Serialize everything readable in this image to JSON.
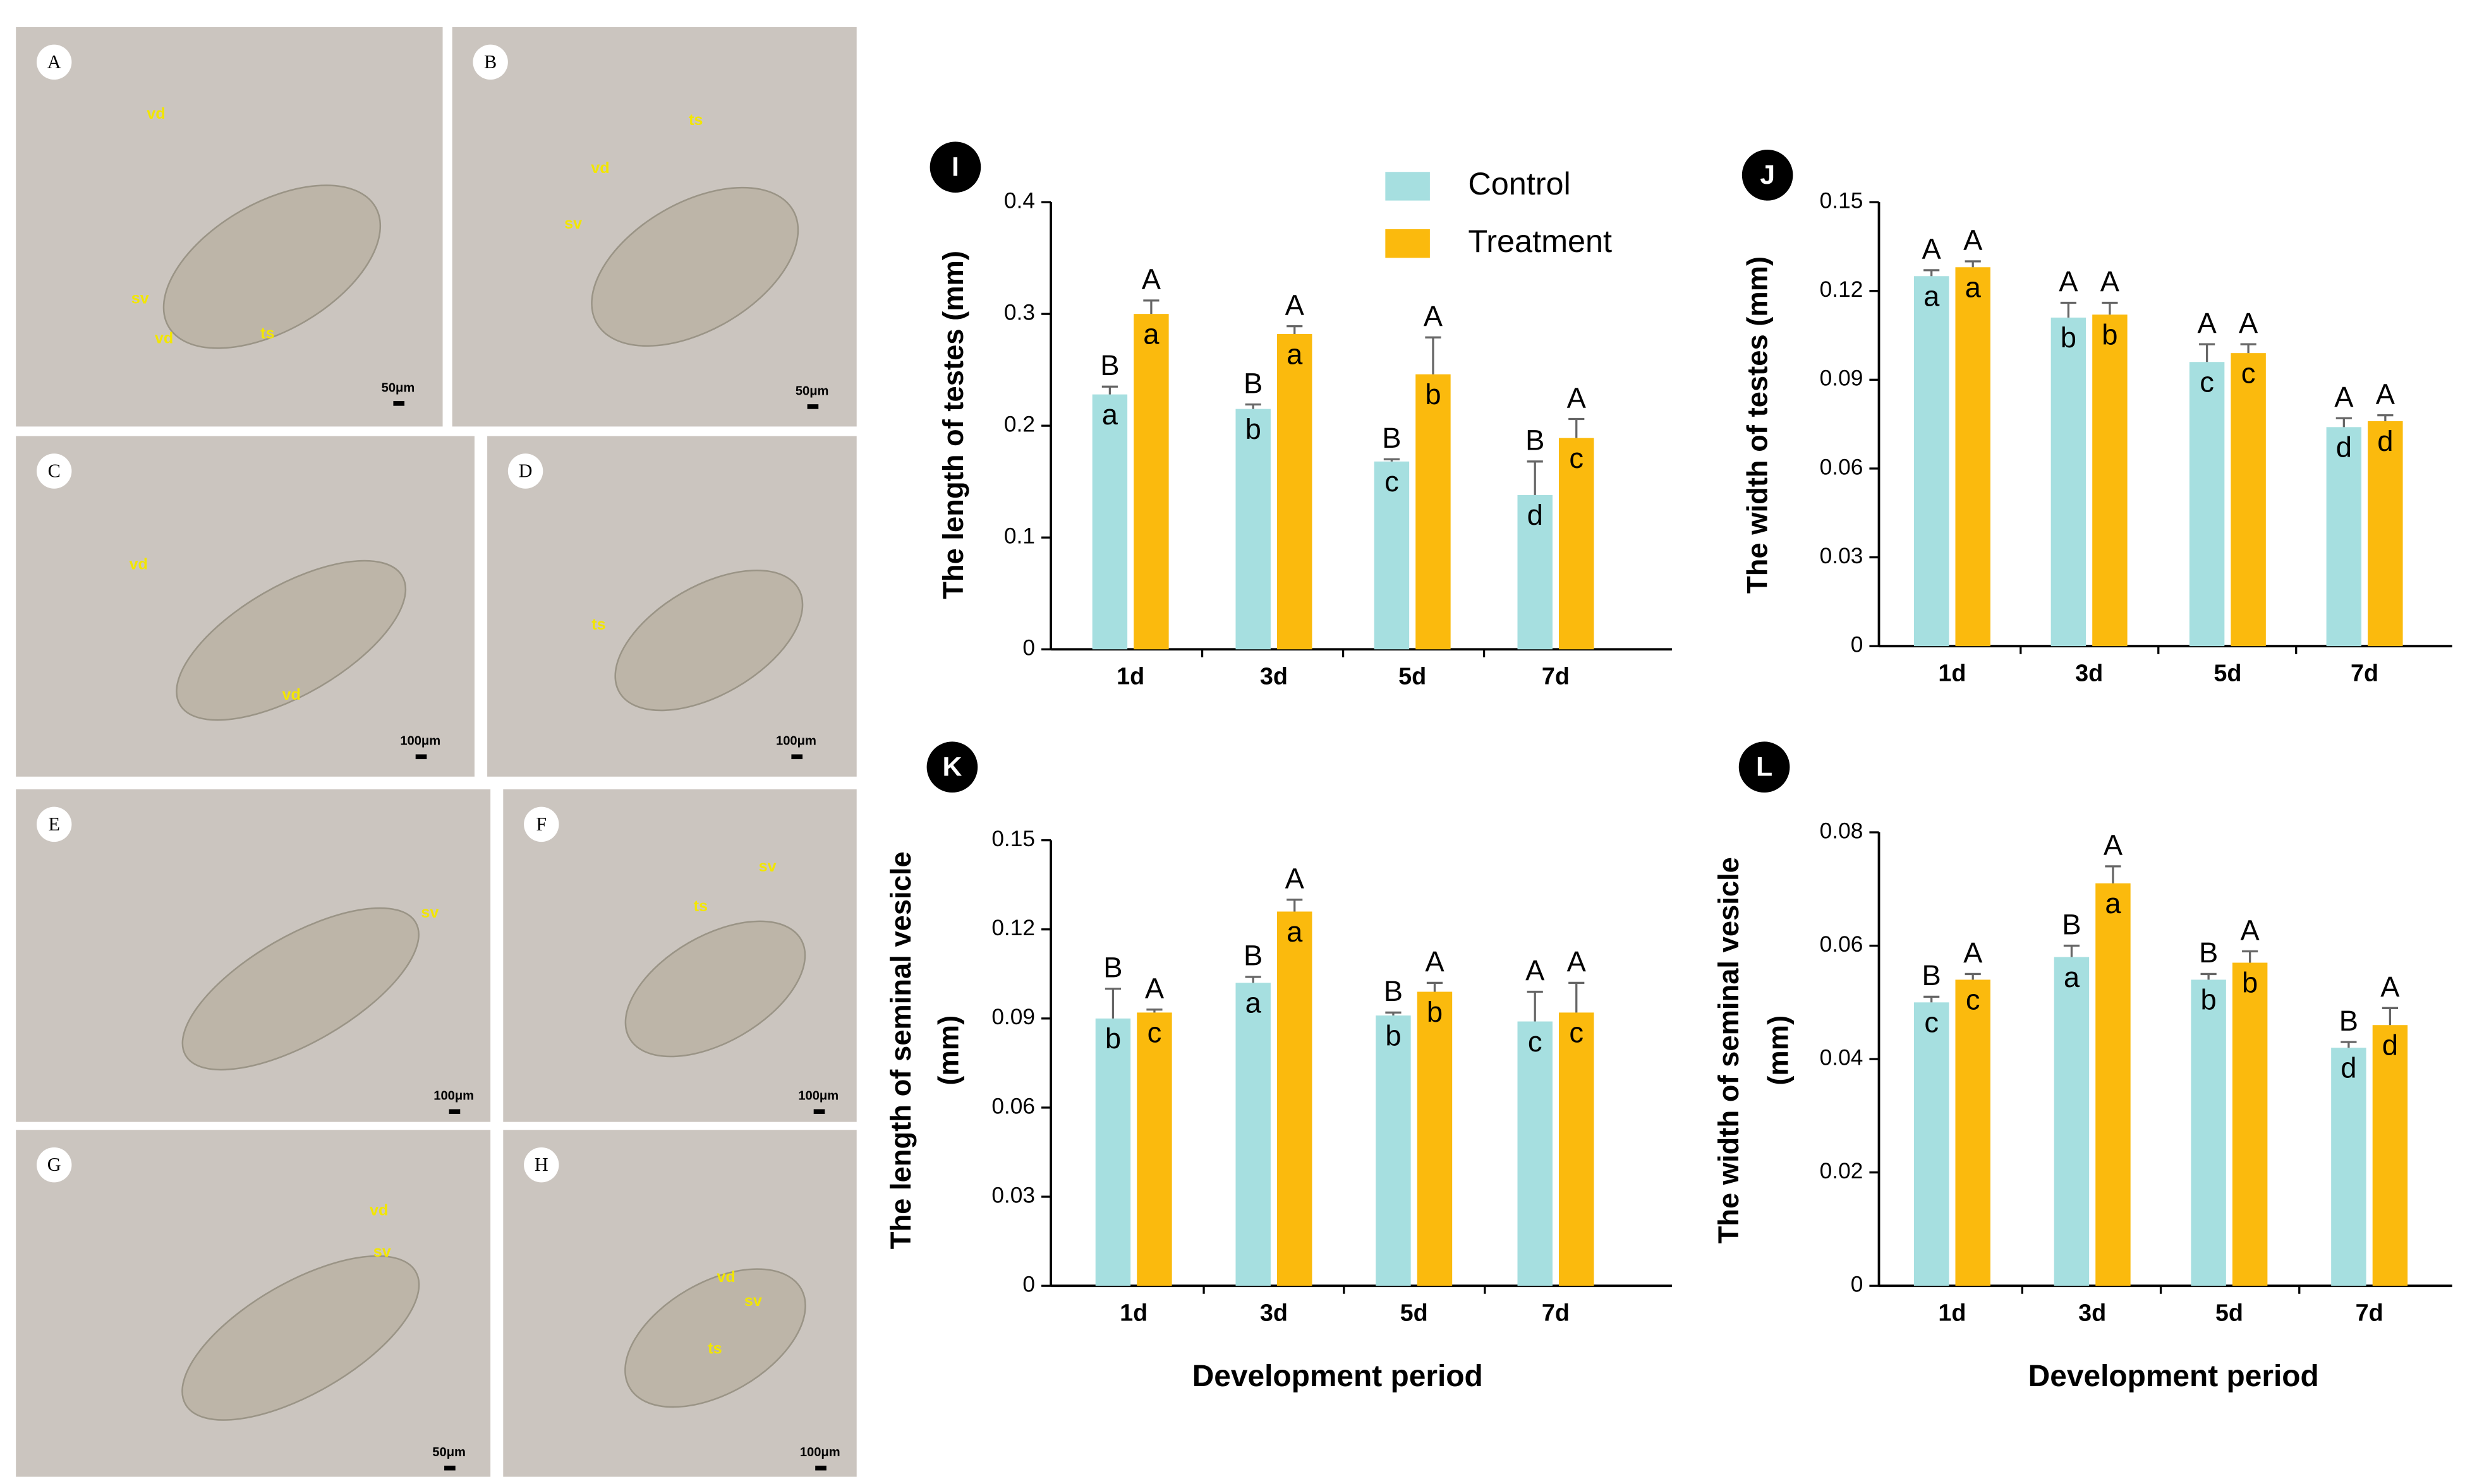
{
  "photo_panels": [
    {
      "letter": "A",
      "labels": [
        "vd",
        "sv",
        "vd",
        "ts"
      ],
      "scale": "50μm"
    },
    {
      "letter": "B",
      "labels": [
        "ts",
        "vd",
        "sv"
      ],
      "scale": "50μm"
    },
    {
      "letter": "C",
      "labels": [
        "vd",
        "vd"
      ],
      "scale": "100μm"
    },
    {
      "letter": "D",
      "labels": [
        "ts"
      ],
      "scale": "100μm"
    },
    {
      "letter": "E",
      "labels": [
        "sv"
      ],
      "scale": "100μm"
    },
    {
      "letter": "F",
      "labels": [
        "ts",
        "sv"
      ],
      "scale": "100μm"
    },
    {
      "letter": "G",
      "labels": [
        "vd",
        "sv"
      ],
      "scale": "50μm"
    },
    {
      "letter": "H",
      "labels": [
        "vd",
        "sv",
        "ts"
      ],
      "scale": "100μm"
    }
  ],
  "chart_data": [
    {
      "type": "bar",
      "panel": "I",
      "ylabel": "The length of testes (mm)",
      "categories": [
        "1d",
        "3d",
        "5d",
        "7d"
      ],
      "ylim": [
        0,
        0.4
      ],
      "yticks": [
        0,
        0.1,
        0.2,
        0.3,
        0.4
      ],
      "legend": true,
      "series": [
        {
          "name": "Control",
          "color": "#a6dfe0",
          "values": [
            0.228,
            0.215,
            0.168,
            0.138
          ],
          "errors": [
            0.007,
            0.004,
            0.002,
            0.03
          ],
          "upper_labels": [
            "B",
            "B",
            "B",
            "B"
          ],
          "inner_labels": [
            "a",
            "b",
            "c",
            "d"
          ]
        },
        {
          "name": "Treatment",
          "color": "#fbba0d",
          "values": [
            0.3,
            0.282,
            0.246,
            0.189
          ],
          "errors": [
            0.012,
            0.007,
            0.033,
            0.017
          ],
          "upper_labels": [
            "A",
            "A",
            "A",
            "A"
          ],
          "inner_labels": [
            "a",
            "a",
            "b",
            "c"
          ]
        }
      ]
    },
    {
      "type": "bar",
      "panel": "J",
      "ylabel": "The width of testes (mm)",
      "categories": [
        "1d",
        "3d",
        "5d",
        "7d"
      ],
      "ylim": [
        0,
        0.15
      ],
      "yticks": [
        0,
        0.03,
        0.06,
        0.09,
        0.12,
        0.15
      ],
      "series": [
        {
          "color": "#a6dfe0",
          "values": [
            0.125,
            0.111,
            0.096,
            0.074
          ],
          "errors": [
            0.002,
            0.005,
            0.006,
            0.003
          ],
          "upper_labels": [
            "A",
            "A",
            "A",
            "A"
          ],
          "inner_labels": [
            "a",
            "b",
            "c",
            "d"
          ]
        },
        {
          "color": "#fbba0d",
          "values": [
            0.128,
            0.112,
            0.099,
            0.076
          ],
          "errors": [
            0.002,
            0.004,
            0.003,
            0.002
          ],
          "upper_labels": [
            "A",
            "A",
            "A",
            "A"
          ],
          "inner_labels": [
            "a",
            "b",
            "c",
            "d"
          ]
        }
      ]
    },
    {
      "type": "bar",
      "panel": "K",
      "ylabel": [
        "The length of seminal vesicle",
        "(mm)"
      ],
      "xlabel": "Development period",
      "categories": [
        "1d",
        "3d",
        "5d",
        "7d"
      ],
      "ylim": [
        0,
        0.15
      ],
      "yticks": [
        0,
        0.03,
        0.06,
        0.09,
        0.12,
        0.15
      ],
      "series": [
        {
          "color": "#a6dfe0",
          "values": [
            0.09,
            0.102,
            0.091,
            0.089
          ],
          "errors": [
            0.01,
            0.002,
            0.001,
            0.01
          ],
          "upper_labels": [
            "B",
            "B",
            "B",
            "A"
          ],
          "inner_labels": [
            "b",
            "a",
            "b",
            "c"
          ]
        },
        {
          "color": "#fbba0d",
          "values": [
            0.092,
            0.126,
            0.099,
            0.092
          ],
          "errors": [
            0.001,
            0.004,
            0.003,
            0.01
          ],
          "upper_labels": [
            "A",
            "A",
            "A",
            "A"
          ],
          "inner_labels": [
            "c",
            "a",
            "b",
            "c"
          ]
        }
      ]
    },
    {
      "type": "bar",
      "panel": "L",
      "ylabel": [
        "The width of seminal vesicle",
        "(mm)"
      ],
      "xlabel": "Development period",
      "categories": [
        "1d",
        "3d",
        "5d",
        "7d"
      ],
      "ylim": [
        0,
        0.08
      ],
      "yticks": [
        0,
        0.02,
        0.04,
        0.06,
        0.08
      ],
      "series": [
        {
          "color": "#a6dfe0",
          "values": [
            0.05,
            0.058,
            0.054,
            0.042
          ],
          "errors": [
            0.001,
            0.002,
            0.001,
            0.001
          ],
          "upper_labels": [
            "B",
            "B",
            "B",
            "B"
          ],
          "inner_labels": [
            "c",
            "a",
            "b",
            "d"
          ]
        },
        {
          "color": "#fbba0d",
          "values": [
            0.054,
            0.071,
            0.057,
            0.046
          ],
          "errors": [
            0.001,
            0.003,
            0.002,
            0.003
          ],
          "upper_labels": [
            "A",
            "A",
            "A",
            "A"
          ],
          "inner_labels": [
            "c",
            "a",
            "b",
            "d"
          ]
        }
      ]
    }
  ]
}
